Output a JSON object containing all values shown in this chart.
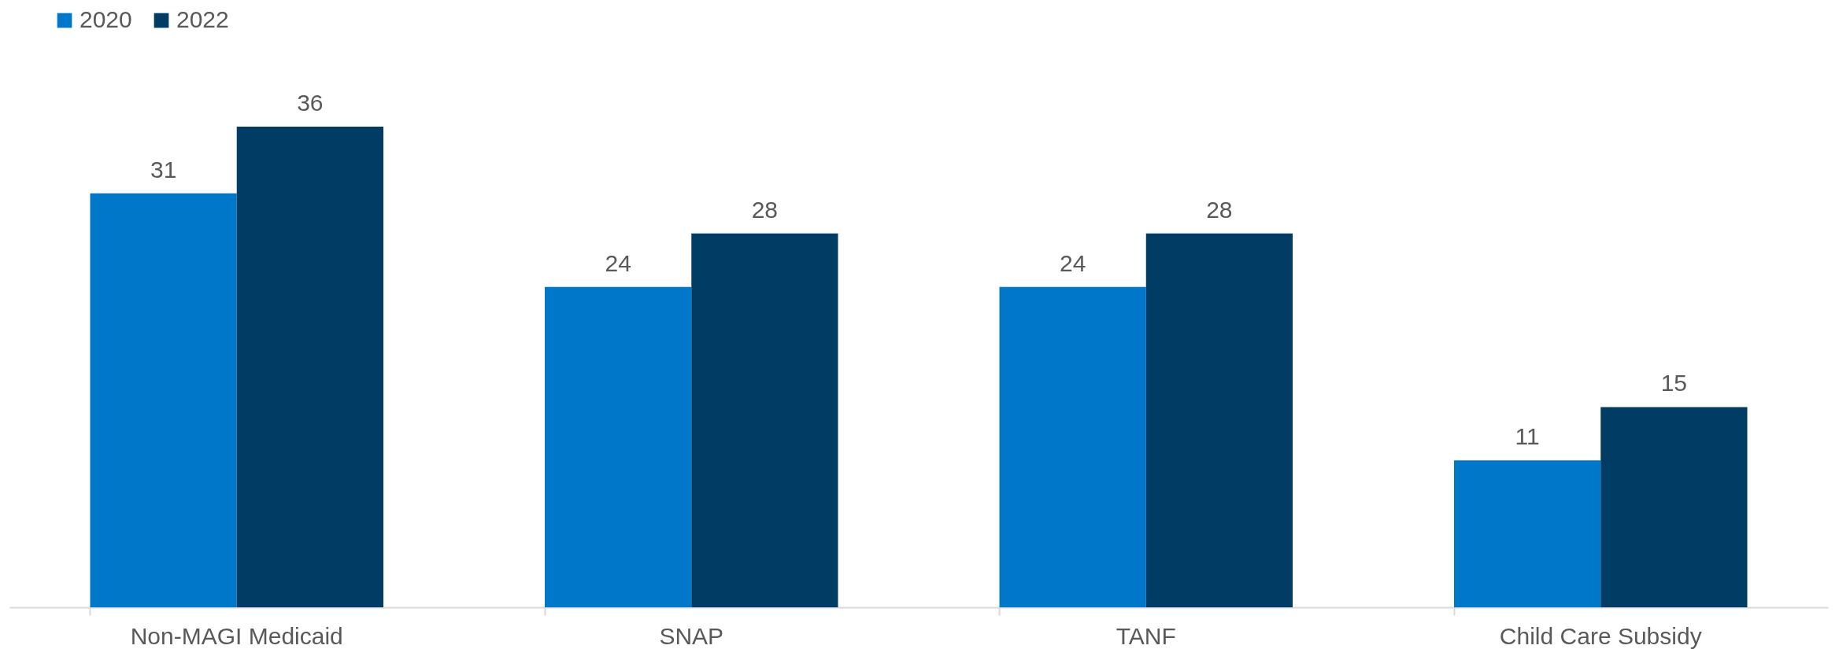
{
  "chart_data": {
    "type": "bar",
    "categories": [
      "Non-MAGI Medicaid",
      "SNAP",
      "TANF",
      "Child Care Subsidy"
    ],
    "series": [
      {
        "name": "2020",
        "color": "#0077c8",
        "values": [
          31,
          24,
          24,
          11
        ]
      },
      {
        "name": "2022",
        "color": "#003c64",
        "values": [
          36,
          28,
          28,
          15
        ]
      }
    ],
    "tick_labels": "x",
    "data_labels": true,
    "legend": "top left",
    "grid": false
  }
}
